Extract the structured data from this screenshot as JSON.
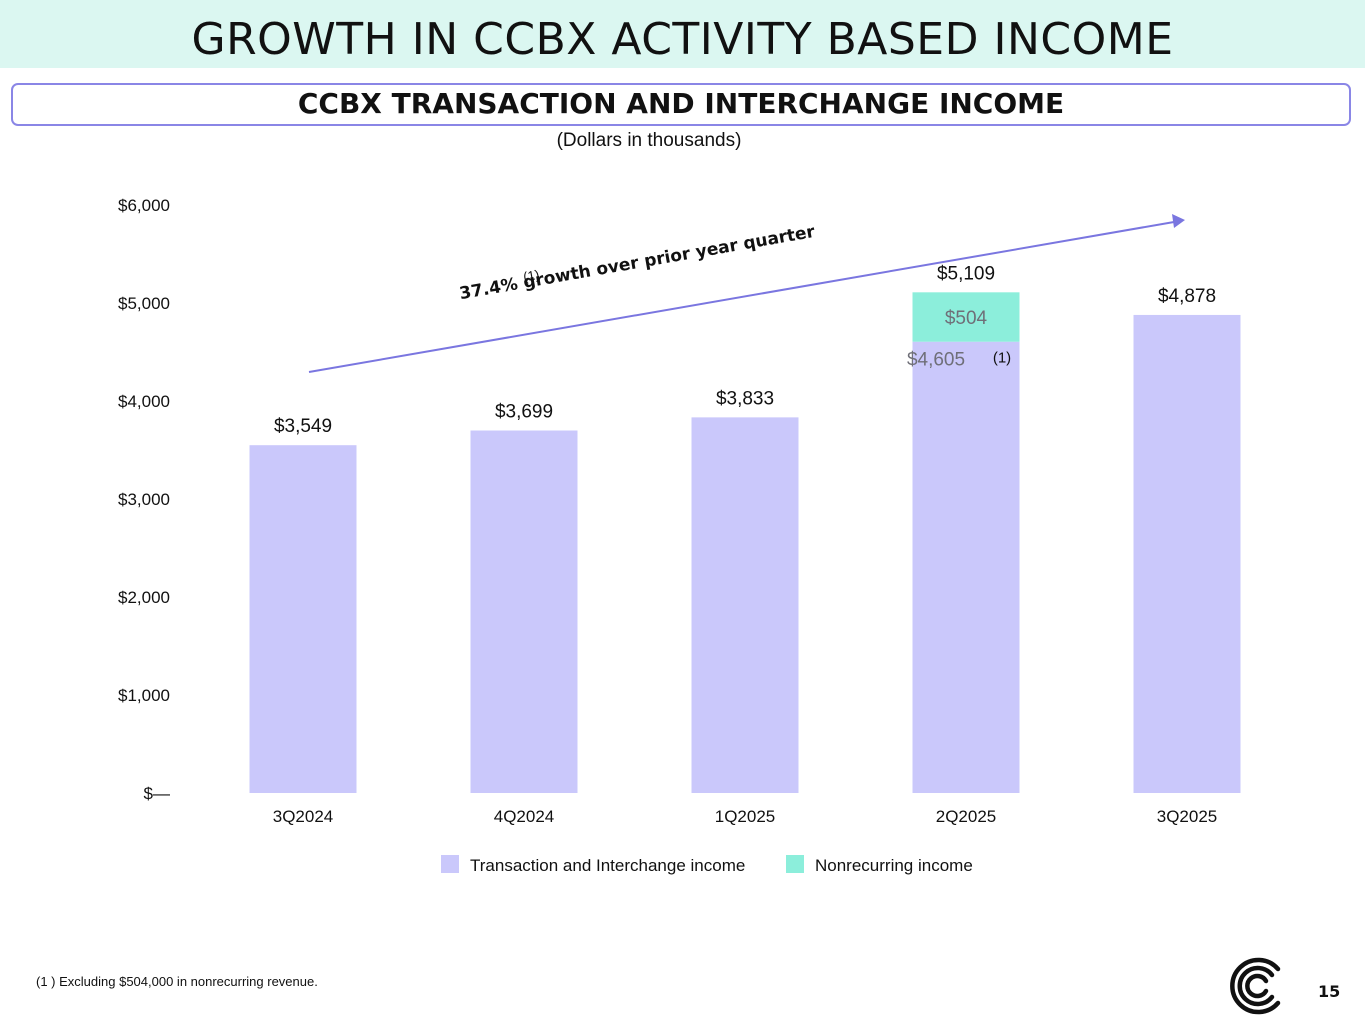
{
  "header": {
    "title": "GROWTH IN CCBX ACTIVITY BASED INCOME",
    "subtitle": "CCBX TRANSACTION AND INTERCHANGE INCOME",
    "units": "(Dollars in thousands)"
  },
  "chart_data": {
    "type": "bar",
    "stacked": true,
    "categories": [
      "3Q2024",
      "4Q2024",
      "1Q2025",
      "2Q2025",
      "3Q2025"
    ],
    "series": [
      {
        "name": "Transaction and Interchange income",
        "color": "#cac8fb",
        "values": [
          3549,
          3699,
          3833,
          4605,
          4878
        ]
      },
      {
        "name": "Nonrecurring income",
        "color": "#8ceedb",
        "values": [
          0,
          0,
          0,
          504,
          0
        ]
      }
    ],
    "total_labels": [
      "$3,549",
      "$3,699",
      "$3,833",
      "$5,109",
      "$4,878"
    ],
    "segment_labels": [
      {
        "category": "2Q2025",
        "series": "Nonrecurring income",
        "label": "$504"
      },
      {
        "category": "2Q2025",
        "series": "Transaction and Interchange income",
        "label": "$4,605",
        "note": "(1)"
      }
    ],
    "ylim": [
      0,
      6000
    ],
    "yticks": [
      0,
      1000,
      2000,
      3000,
      4000,
      5000,
      6000
    ],
    "ytick_labels": [
      "$—",
      "$1,000",
      "$2,000",
      "$3,000",
      "$4,000",
      "$5,000",
      "$6,000"
    ],
    "legend_position": "bottom",
    "annotation": {
      "text": "37.4% growth over prior year quarter",
      "note": "(1)",
      "arrow_color": "#7a76e0"
    },
    "xlabel": "",
    "ylabel": ""
  },
  "footer": {
    "footnote": "(1 ) Excluding $504,000 in nonrecurring revenue.",
    "page_number": "15"
  }
}
